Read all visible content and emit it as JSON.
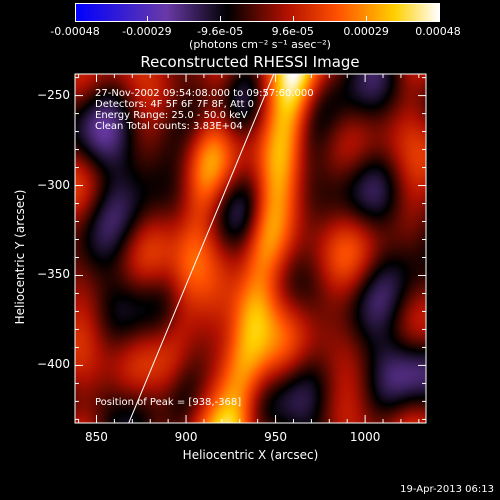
{
  "colorbar": {
    "tick_labels": [
      "-0.00048",
      "-0.00029",
      "-9.6e-05",
      "9.6e-05",
      "0.00029",
      "0.00048"
    ],
    "unit_label": "(photons cm⁻² s⁻¹ asec⁻²)",
    "colors": [
      "#0000ff",
      "#6a3aa8",
      "#000000",
      "#b01000",
      "#ff5000",
      "#ffd000",
      "#ffffff"
    ]
  },
  "chart_data": {
    "type": "heatmap",
    "title": "Reconstructed RHESSI Image",
    "xlabel": "Heliocentric X (arcsec)",
    "ylabel": "Heliocentric Y (arcsec)",
    "x_ticks": [
      850,
      900,
      950,
      1000
    ],
    "y_ticks": [
      -250,
      -300,
      -350,
      -400
    ],
    "xlim": [
      838,
      1034
    ],
    "ylim": [
      -432,
      -238
    ],
    "value_range": [
      -0.00048,
      0.00048
    ],
    "peak": {
      "x": 938,
      "y": -368
    },
    "limb_line": [
      [
        868,
        -432
      ],
      [
        949,
        -238
      ]
    ],
    "annotations": [
      "27-Nov-2002 09:54:08.000 to 09:57:60.000",
      "Detectors: 4F 5F 6F 7F 8F, Att 0",
      "Energy Range: 25.0 - 50.0 keV",
      "Clean    Total counts: 3.83E+04"
    ],
    "peak_label": "Position of Peak = [938,-368]"
  },
  "footer": {
    "timestamp": "19-Apr-2013 06:13"
  }
}
